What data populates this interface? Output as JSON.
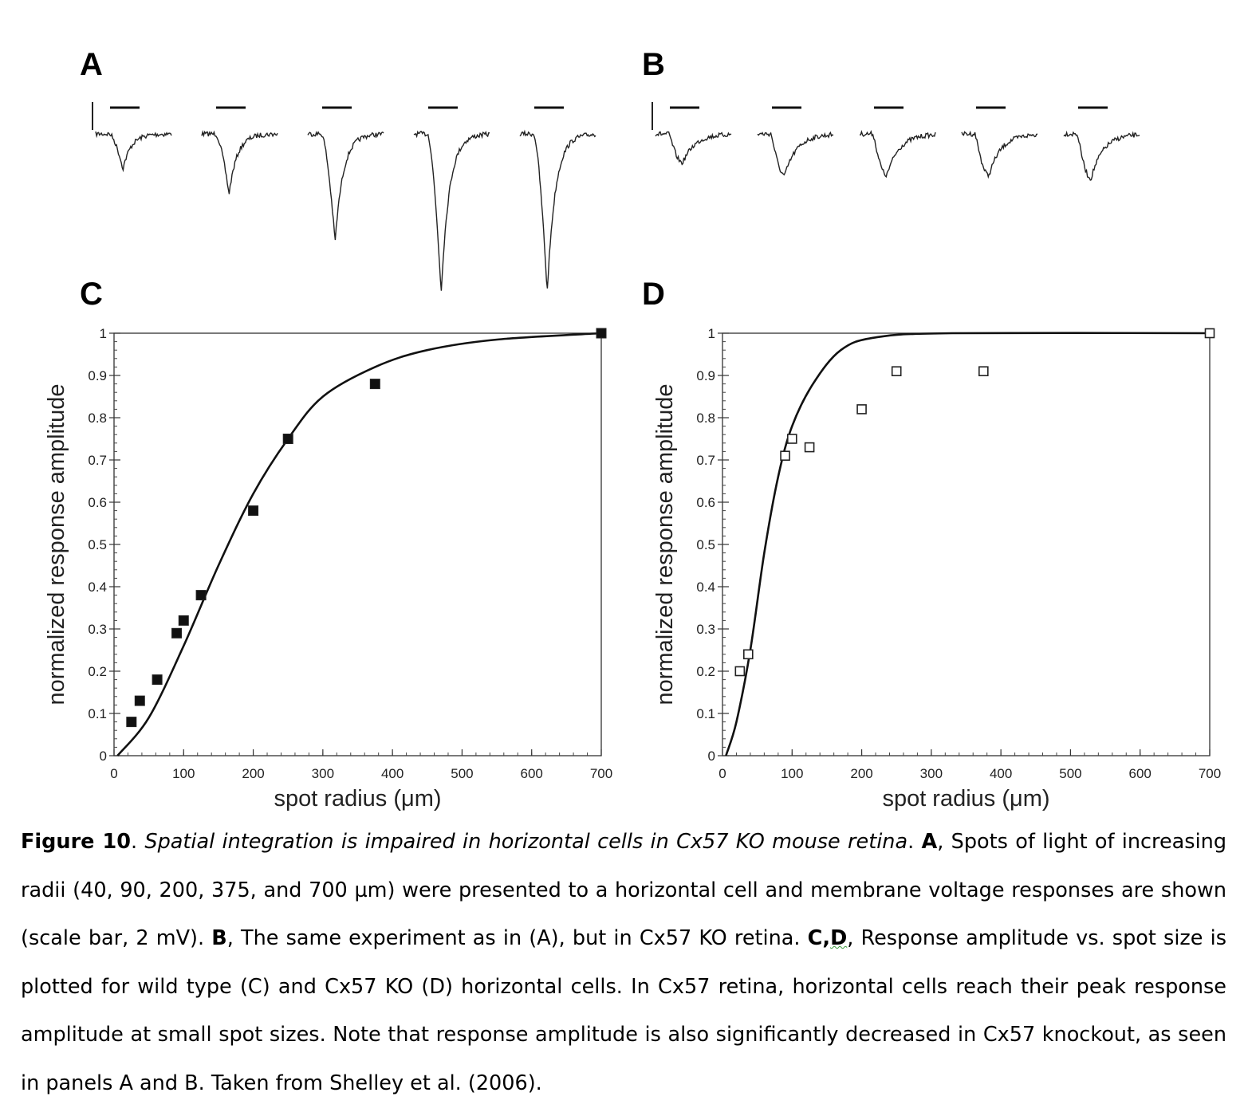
{
  "panels": {
    "a_letter": "A",
    "b_letter": "B",
    "c_letter": "C",
    "d_letter": "D"
  },
  "traces": {
    "description_values": "peak deflection per trace, relative units",
    "a_peaks": [
      0.22,
      0.38,
      0.68,
      1.0,
      1.0
    ],
    "b_peaks": [
      0.18,
      0.26,
      0.26,
      0.26,
      0.28
    ]
  },
  "chart_data": [
    {
      "type": "scatter",
      "panel": "C",
      "xlabel": "spot radius (μm)",
      "ylabel": "normalized response amplitude",
      "xlim": [
        0,
        700
      ],
      "ylim": [
        0,
        1
      ],
      "xticks": [
        "0",
        "100",
        "200",
        "300",
        "400",
        "500",
        "600",
        "700"
      ],
      "yticks": [
        "0",
        "0.1",
        "0.2",
        "0.3",
        "0.4",
        "0.5",
        "0.6",
        "0.7",
        "0.8",
        "0.9",
        "1"
      ],
      "marker": "filled-square",
      "points": [
        [
          25,
          0.08
        ],
        [
          37,
          0.13
        ],
        [
          62,
          0.18
        ],
        [
          90,
          0.29
        ],
        [
          100,
          0.32
        ],
        [
          125,
          0.38
        ],
        [
          200,
          0.58
        ],
        [
          250,
          0.75
        ],
        [
          375,
          0.88
        ],
        [
          700,
          1.0
        ]
      ],
      "fit_curve": [
        [
          5,
          0.0
        ],
        [
          50,
          0.09
        ],
        [
          100,
          0.26
        ],
        [
          150,
          0.45
        ],
        [
          200,
          0.62
        ],
        [
          250,
          0.75
        ],
        [
          300,
          0.85
        ],
        [
          375,
          0.92
        ],
        [
          450,
          0.96
        ],
        [
          550,
          0.985
        ],
        [
          700,
          1.0
        ]
      ]
    },
    {
      "type": "scatter",
      "panel": "D",
      "xlabel": "spot radius (μm)",
      "ylabel": "normalized response amplitude",
      "xlim": [
        0,
        700
      ],
      "ylim": [
        0,
        1
      ],
      "xticks": [
        "0",
        "100",
        "200",
        "300",
        "400",
        "500",
        "600",
        "700"
      ],
      "yticks": [
        "0",
        "0.1",
        "0.2",
        "0.3",
        "0.4",
        "0.5",
        "0.6",
        "0.7",
        "0.8",
        "0.9",
        "1"
      ],
      "marker": "open-square",
      "points": [
        [
          25,
          0.2
        ],
        [
          37,
          0.24
        ],
        [
          90,
          0.71
        ],
        [
          100,
          0.75
        ],
        [
          125,
          0.73
        ],
        [
          200,
          0.82
        ],
        [
          250,
          0.91
        ],
        [
          375,
          0.91
        ],
        [
          700,
          1.0
        ]
      ],
      "fit_curve": [
        [
          5,
          0.0
        ],
        [
          20,
          0.08
        ],
        [
          40,
          0.25
        ],
        [
          60,
          0.48
        ],
        [
          80,
          0.66
        ],
        [
          100,
          0.78
        ],
        [
          130,
          0.88
        ],
        [
          170,
          0.96
        ],
        [
          220,
          0.99
        ],
        [
          330,
          1.0
        ],
        [
          700,
          1.0
        ]
      ]
    }
  ],
  "caption": {
    "fig_label": "Figure 10",
    "p1": ". ",
    "title_italic": "Spatial integration is impaired in horizontal cells in Cx57 KO mouse retina",
    "p2": ". ",
    "a_bold": "A",
    "a_text": ", Spots of light of increasing radii (40, 90, 200, 375, and 700 µm) were presented to a horizontal cell and membrane voltage responses are shown (scale bar, 2 mV). ",
    "b_bold": "B",
    "b_text": ", The same experiment as in (A), but in Cx57 KO retina. ",
    "c_bold": "C",
    "comma": ",",
    "d_bold": "D",
    "cd_text": ", Response amplitude vs. spot size is plotted for wild type (C) and Cx57 KO (D) horizontal cells. In Cx57 retina, horizontal cells reach their peak response amplitude at small spot sizes. Note that response amplitude is also significantly decreased in Cx57 knockout, as seen in panels A and B. Taken from Shelley et al. (2006)."
  }
}
